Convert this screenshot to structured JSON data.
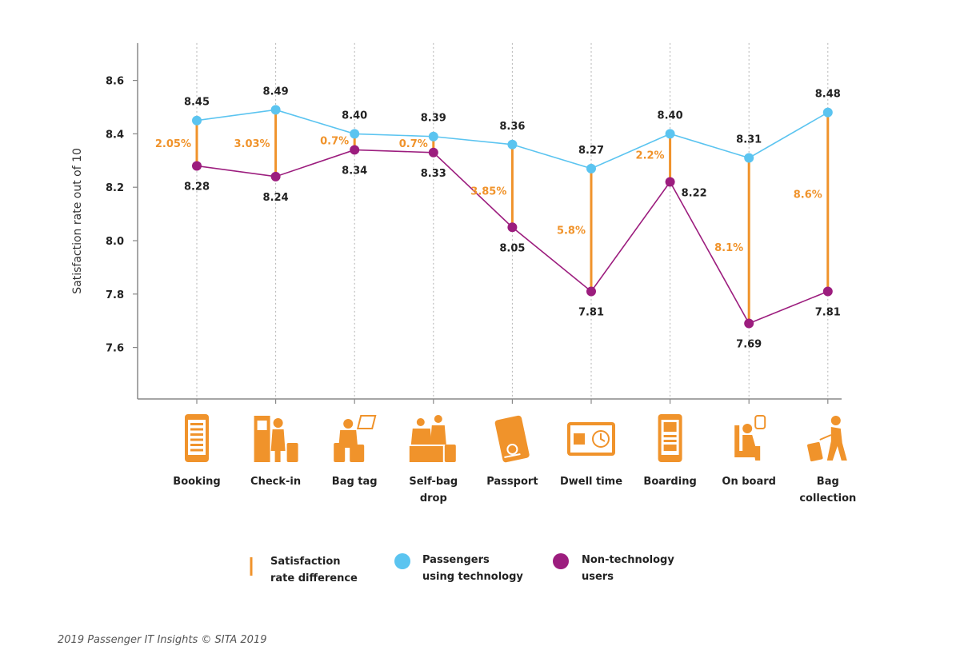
{
  "chart_data": {
    "type": "line",
    "ylabel": "Satisfaction rate out of 10",
    "xlabel": "",
    "ylim": [
      7.4,
      8.74
    ],
    "yticks": [
      "7.6",
      "7.8",
      "8.0",
      "8.2",
      "8.4",
      "8.6"
    ],
    "grid": "vertical dotted lines at each category",
    "categories": [
      {
        "label": [
          "Booking"
        ],
        "icon": "smartphone-icon"
      },
      {
        "label": [
          "Check-in"
        ],
        "icon": "check-in-kiosk-icon"
      },
      {
        "label": [
          "Bag tag"
        ],
        "icon": "bag-tag-icon"
      },
      {
        "label": [
          "Self-bag",
          "drop"
        ],
        "icon": "self-bag-drop-icon"
      },
      {
        "label": [
          "Passport"
        ],
        "icon": "passport-icon"
      },
      {
        "label": [
          "Dwell time"
        ],
        "icon": "dwell-time-icon"
      },
      {
        "label": [
          "Boarding"
        ],
        "icon": "boarding-pass-icon"
      },
      {
        "label": [
          "On board"
        ],
        "icon": "seated-passenger-icon"
      },
      {
        "label": [
          "Bag",
          "collection"
        ],
        "icon": "bag-collection-icon"
      }
    ],
    "series": [
      {
        "name": "Passengers using technology",
        "color": "#5bc4f0",
        "values": [
          8.45,
          8.49,
          8.4,
          8.39,
          8.36,
          8.27,
          8.4,
          8.31,
          8.48
        ],
        "labels": [
          "8.45",
          "8.49",
          "8.40",
          "8.39",
          "8.36",
          "8.27",
          "8.40",
          "8.31",
          "8.48"
        ]
      },
      {
        "name": "Non-technology users",
        "color": "#9c1d7e",
        "values": [
          8.28,
          8.24,
          8.34,
          8.33,
          8.05,
          7.81,
          8.22,
          7.69,
          7.81
        ],
        "labels": [
          "8.28",
          "8.24",
          "8.34",
          "8.33",
          "8.05",
          "7.81",
          "8.22",
          "7.69",
          "7.81"
        ]
      }
    ],
    "differences": {
      "name": "Satisfaction rate difference",
      "color": "#f0932b",
      "labels": [
        "2.05%",
        "3.03%",
        "0.7%",
        "0.7%",
        "3.85%",
        "5.8%",
        "2.2%",
        "8.1%",
        "8.6%"
      ]
    },
    "legend": {
      "placement": "bottom",
      "items": [
        {
          "label": [
            "Satisfaction",
            "rate difference"
          ],
          "marker": "bar",
          "color": "#f0932b"
        },
        {
          "label": [
            "Passengers",
            "using technology"
          ],
          "marker": "dot",
          "color": "#5bc4f0"
        },
        {
          "label": [
            "Non-technology",
            "users"
          ],
          "marker": "dot",
          "color": "#9c1d7e"
        }
      ]
    }
  },
  "source": "2019 Passenger IT Insights © SITA 2019",
  "colors": {
    "orange": "#f0932b",
    "tech": "#5bc4f0",
    "nontech": "#9c1d7e",
    "axis": "#888888",
    "grid": "#b5b5b5"
  }
}
